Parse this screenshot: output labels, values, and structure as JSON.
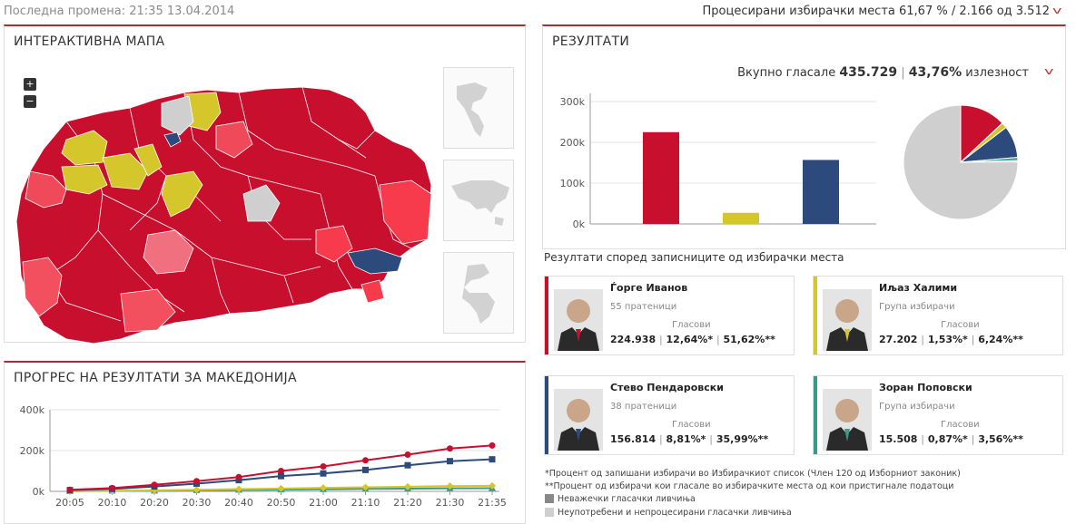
{
  "header": {
    "last_change": "Последна промена: 21:35 13.04.2014",
    "processed": "Процесирани избирачки места 61,67 % / 2.166 од 3.512"
  },
  "map_panel": {
    "title": "ИНТЕРАКТИВНА МАПА",
    "zoom_in": "+",
    "zoom_out": "−"
  },
  "results_panel": {
    "title": "РЕЗУЛТАТИ",
    "total_label": "Вкупно гласале",
    "total_votes": "435.729",
    "sep": "|",
    "turnout": "43,76%",
    "turnout_label": "излезност"
  },
  "chart_data": [
    {
      "type": "bar",
      "categories": [
        "Ѓорге Иванов",
        "Иљаз Халими",
        "Стево Пендаровски",
        "Зоран Поповски"
      ],
      "values": [
        224938,
        27202,
        156814,
        15508
      ],
      "colors": [
        "#c8102e",
        "#d4c62b",
        "#2c4a7c",
        "#3a9a86"
      ],
      "yticks": [
        0,
        100000,
        200000,
        300000
      ],
      "ytick_labels": [
        "0k",
        "100k",
        "200k",
        "300k"
      ],
      "ylim": [
        0,
        320000
      ],
      "grid": true
    },
    {
      "type": "pie",
      "values": [
        224938,
        27202,
        156814,
        15508,
        6000,
        1300000
      ],
      "colors": [
        "#c8102e",
        "#d4c62b",
        "#2c4a7c",
        "#3a9a86",
        "#888888",
        "#cfcfcf"
      ]
    },
    {
      "type": "line",
      "x": [
        "20:05",
        "20:10",
        "20:20",
        "20:30",
        "20:40",
        "20:50",
        "21:00",
        "21:10",
        "21:20",
        "21:30",
        "21:35"
      ],
      "series": [
        {
          "color": "#c8102e",
          "marker": "circle",
          "values": [
            8000,
            16000,
            32000,
            50000,
            70000,
            100000,
            122000,
            152000,
            180000,
            210000,
            225000
          ]
        },
        {
          "color": "#2c4a7c",
          "marker": "square",
          "values": [
            6000,
            12000,
            24000,
            38000,
            55000,
            75000,
            88000,
            105000,
            128000,
            148000,
            157000
          ]
        },
        {
          "color": "#d4c62b",
          "marker": "diamond",
          "values": [
            2000,
            3000,
            5000,
            8000,
            11000,
            14000,
            17000,
            20000,
            23000,
            26000,
            27200
          ]
        },
        {
          "color": "#3a9a86",
          "marker": "triangle",
          "values": [
            1000,
            2000,
            3000,
            5000,
            7000,
            8500,
            10000,
            12000,
            13500,
            15000,
            15500
          ]
        }
      ],
      "yticks": [
        0,
        200000,
        400000
      ],
      "ytick_labels": [
        "0k",
        "200k",
        "400k"
      ],
      "ylim": [
        0,
        400000
      ],
      "grid": true
    }
  ],
  "progress_panel": {
    "title": "ПРОГРЕС НА РЕЗУЛТАТИ ЗА МАКЕДОНИЈА"
  },
  "candidates_section": {
    "title": "Резултати според записниците од избирачки места",
    "votes_label": "Гласови",
    "candidates": [
      {
        "name": "Ѓорге Иванов",
        "sub": "55 пратеници",
        "votes": "224.938",
        "pct1": "12,64%*",
        "pct2": "51,62%**",
        "color": "#c8102e"
      },
      {
        "name": "Иљаз Халими",
        "sub": "Група избирачи",
        "votes": "27.202",
        "pct1": "1,53%*",
        "pct2": "6,24%**",
        "color": "#d4c62b"
      },
      {
        "name": "Стево Пендаровски",
        "sub": "38 пратеници",
        "votes": "156.814",
        "pct1": "8,81%*",
        "pct2": "35,99%**",
        "color": "#2c4a7c"
      },
      {
        "name": "Зоран Поповски",
        "sub": "Група избирачи",
        "votes": "15.508",
        "pct1": "0,87%*",
        "pct2": "3,56%**",
        "color": "#3a9a86"
      }
    ]
  },
  "footnotes": {
    "note1": "*Процент од запишани избирачи во Избирачкиот список (Член 120 од Изборниот законик)",
    "note2": "**Процент од избирачи кои гласале во избирачките места од кои пристигнале податоци",
    "legend1": "Неважечки гласачки ливчиња",
    "legend2": "Неупотребени и непроцесирани гласачки ливчиња",
    "legend1_color": "#888888",
    "legend2_color": "#cfcfcf"
  }
}
